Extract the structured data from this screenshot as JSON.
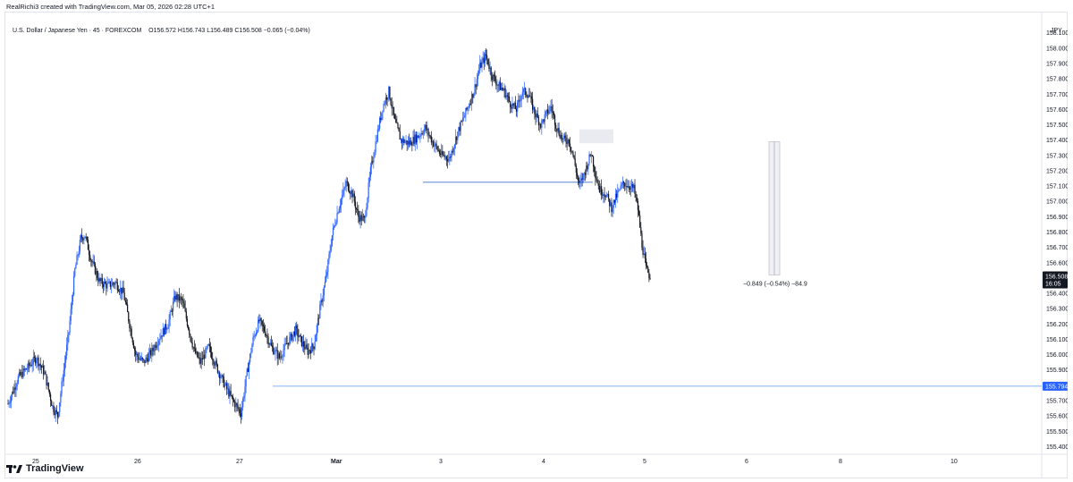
{
  "header": {
    "credit": "RealRichi3 created with TradingView.com, Mar 05, 2026 02:28 UTC+1"
  },
  "legend": {
    "symbol": "U.S. Dollar / Japanese Yen · 45 · FOREXCOM",
    "o_label": "O",
    "o_value": "156.572",
    "h_label": "H",
    "h_value": "156.743",
    "l_label": "L",
    "l_value": "156.489",
    "c_label": "C",
    "c_value": "156.508",
    "change": "−0.065 (−0.04%)"
  },
  "currency": "JPY",
  "brand": {
    "name": "TradingView"
  },
  "colors": {
    "up": "#2962ff",
    "down": "#131722",
    "level_line": "#5b9cf6",
    "label_blue": "#2962ff",
    "label_dark": "#131722"
  },
  "chart_data": {
    "type": "candlestick",
    "ylim": [
      155.35,
      158.18
    ],
    "y_ticks": [
      158.1,
      158.0,
      157.9,
      157.8,
      157.7,
      157.6,
      157.5,
      157.4,
      157.3,
      157.2,
      157.1,
      157.0,
      156.9,
      156.8,
      156.7,
      156.6,
      156.5,
      156.4,
      156.3,
      156.2,
      156.1,
      156.0,
      155.9,
      155.8,
      155.7,
      155.6,
      155.5,
      155.4
    ],
    "x_labels": [
      "25",
      "26",
      "27",
      "Mar",
      "3",
      "4",
      "5",
      "6",
      "8",
      "10"
    ],
    "last_price": {
      "value": 156.508,
      "label": "156.508",
      "countdown": "16:05"
    },
    "horizontal_level": {
      "value": 155.794,
      "label": "155.794"
    },
    "measure": {
      "from": 157.39,
      "to": 156.52,
      "text": "−0.849 (−0.54%) −84.9"
    },
    "support_line": {
      "value": 157.125
    },
    "supply_zone": {
      "low": 157.38,
      "high": 157.47
    },
    "waypoints": [
      [
        0,
        155.68
      ],
      [
        10,
        155.85
      ],
      [
        20,
        155.92
      ],
      [
        28,
        155.98
      ],
      [
        36,
        155.88
      ],
      [
        44,
        155.66
      ],
      [
        49,
        155.6
      ],
      [
        54,
        155.85
      ],
      [
        60,
        156.15
      ],
      [
        66,
        156.55
      ],
      [
        72,
        156.76
      ],
      [
        76,
        156.78
      ],
      [
        82,
        156.62
      ],
      [
        90,
        156.48
      ],
      [
        98,
        156.45
      ],
      [
        106,
        156.47
      ],
      [
        114,
        156.4
      ],
      [
        120,
        156.2
      ],
      [
        126,
        156.0
      ],
      [
        134,
        155.95
      ],
      [
        142,
        156.02
      ],
      [
        150,
        156.12
      ],
      [
        158,
        156.2
      ],
      [
        165,
        156.38
      ],
      [
        172,
        156.35
      ],
      [
        178,
        156.18
      ],
      [
        184,
        156.02
      ],
      [
        190,
        155.95
      ],
      [
        198,
        156.05
      ],
      [
        206,
        155.92
      ],
      [
        214,
        155.8
      ],
      [
        222,
        155.7
      ],
      [
        230,
        155.62
      ],
      [
        236,
        155.88
      ],
      [
        242,
        156.1
      ],
      [
        248,
        156.22
      ],
      [
        254,
        156.15
      ],
      [
        260,
        156.05
      ],
      [
        268,
        155.98
      ],
      [
        276,
        156.08
      ],
      [
        284,
        156.16
      ],
      [
        290,
        156.08
      ],
      [
        296,
        156.02
      ],
      [
        302,
        156.06
      ],
      [
        308,
        156.3
      ],
      [
        314,
        156.5
      ],
      [
        320,
        156.78
      ],
      [
        326,
        156.95
      ],
      [
        334,
        157.12
      ],
      [
        340,
        157.05
      ],
      [
        346,
        156.9
      ],
      [
        352,
        156.88
      ],
      [
        358,
        157.2
      ],
      [
        364,
        157.42
      ],
      [
        370,
        157.62
      ],
      [
        376,
        157.72
      ],
      [
        382,
        157.52
      ],
      [
        388,
        157.4
      ],
      [
        396,
        157.38
      ],
      [
        404,
        157.42
      ],
      [
        412,
        157.48
      ],
      [
        420,
        157.38
      ],
      [
        428,
        157.3
      ],
      [
        436,
        157.28
      ],
      [
        444,
        157.45
      ],
      [
        452,
        157.58
      ],
      [
        460,
        157.72
      ],
      [
        466,
        157.88
      ],
      [
        472,
        157.95
      ],
      [
        478,
        157.82
      ],
      [
        484,
        157.76
      ],
      [
        490,
        157.72
      ],
      [
        496,
        157.64
      ],
      [
        502,
        157.6
      ],
      [
        508,
        157.72
      ],
      [
        514,
        157.7
      ],
      [
        520,
        157.58
      ],
      [
        526,
        157.5
      ],
      [
        530,
        157.55
      ],
      [
        536,
        157.62
      ],
      [
        542,
        157.48
      ],
      [
        548,
        157.4
      ],
      [
        554,
        157.4
      ],
      [
        558,
        157.3
      ],
      [
        564,
        157.1
      ],
      [
        570,
        157.2
      ],
      [
        576,
        157.32
      ],
      [
        580,
        157.18
      ],
      [
        584,
        157.08
      ],
      [
        590,
        157.05
      ],
      [
        596,
        156.96
      ],
      [
        602,
        157.05
      ],
      [
        608,
        157.12
      ],
      [
        614,
        157.1
      ],
      [
        618,
        157.08
      ],
      [
        622,
        156.95
      ],
      [
        626,
        156.72
      ],
      [
        630,
        156.56
      ],
      [
        634,
        156.51
      ]
    ]
  }
}
